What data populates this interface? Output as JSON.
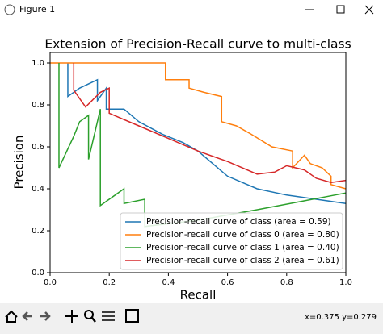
{
  "window": {
    "title": "Figure 1",
    "status": "x=0.375 y=0.279"
  },
  "chart_data": {
    "type": "line",
    "title": "Extension of Precision-Recall curve to multi-class",
    "x_label": "Recall",
    "y_label": "Precision",
    "xlim": [
      0,
      1
    ],
    "ylim": [
      0,
      1.05
    ],
    "xticks": [
      {
        "value": 0,
        "label": "0.0"
      },
      0.2,
      0.4,
      0.6,
      0.8,
      {
        "value": 1,
        "label": "1.0"
      }
    ],
    "yticks": [
      {
        "value": 0,
        "label": "0.0"
      },
      0.2,
      0.4,
      0.6,
      0.8,
      {
        "value": 1,
        "label": "1.0"
      }
    ],
    "legend": "lower right",
    "series": [
      {
        "name": "Precision-recall curve of class (area = 0.59)",
        "color": "#1f77b4",
        "x": [
          0.06,
          0.06,
          0.1,
          0.16,
          0.16,
          0.19,
          0.19,
          0.25,
          0.3,
          0.38,
          0.45,
          0.5,
          0.55,
          0.6,
          0.65,
          0.7,
          0.8,
          0.9,
          1.0
        ],
        "values": [
          1.0,
          0.84,
          0.88,
          0.92,
          0.82,
          0.88,
          0.78,
          0.78,
          0.72,
          0.66,
          0.62,
          0.58,
          0.52,
          0.46,
          0.43,
          0.4,
          0.37,
          0.35,
          0.33
        ]
      },
      {
        "name": "Precision-recall curve of class 0 (area = 0.80)",
        "color": "#ff7f0e",
        "x": [
          0,
          0.39,
          0.39,
          0.47,
          0.47,
          0.52,
          0.58,
          0.58,
          0.63,
          0.68,
          0.75,
          0.82,
          0.82,
          0.86,
          0.88,
          0.92,
          0.95,
          0.95,
          1.0
        ],
        "values": [
          1.0,
          1.0,
          0.92,
          0.92,
          0.88,
          0.86,
          0.84,
          0.72,
          0.7,
          0.66,
          0.6,
          0.58,
          0.5,
          0.56,
          0.52,
          0.5,
          0.46,
          0.42,
          0.4
        ]
      },
      {
        "name": "Precision-recall curve of class 1 (area = 0.40)",
        "color": "#2ca02c",
        "x": [
          0.03,
          0.03,
          0.08,
          0.1,
          0.13,
          0.13,
          0.17,
          0.17,
          0.25,
          0.25,
          0.32,
          0.32,
          0.5,
          0.7,
          0.85,
          1.0
        ],
        "values": [
          1.0,
          0.5,
          0.65,
          0.72,
          0.75,
          0.54,
          0.78,
          0.32,
          0.4,
          0.33,
          0.35,
          0.22,
          0.25,
          0.3,
          0.34,
          0.38
        ]
      },
      {
        "name": "Precision-recall curve of class 2 (area = 0.61)",
        "color": "#d62728",
        "x": [
          0.08,
          0.08,
          0.12,
          0.17,
          0.2,
          0.2,
          0.3,
          0.4,
          0.5,
          0.6,
          0.7,
          0.76,
          0.8,
          0.86,
          0.9,
          0.95,
          1.0
        ],
        "values": [
          1.0,
          0.87,
          0.79,
          0.86,
          0.88,
          0.76,
          0.7,
          0.64,
          0.58,
          0.53,
          0.47,
          0.48,
          0.51,
          0.49,
          0.45,
          0.43,
          0.44
        ]
      }
    ]
  }
}
